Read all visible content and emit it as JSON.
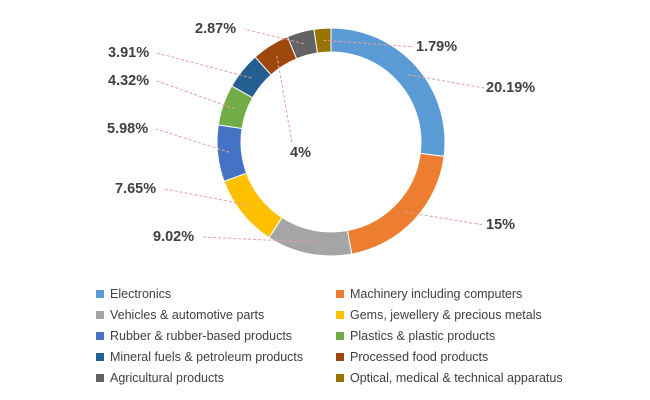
{
  "chart_data": {
    "type": "pie",
    "style": "donut",
    "title": "",
    "legend_position": "bottom",
    "slices": [
      {
        "name": "Electronics",
        "value": 20.19,
        "label": "20.19%",
        "color": "#5b9bd5"
      },
      {
        "name": "Machinery including computers",
        "value": 15,
        "label": "15%",
        "color": "#ed7d31"
      },
      {
        "name": "Vehicles & automotive parts",
        "value": 9.02,
        "label": "9.02%",
        "color": "#a5a5a5"
      },
      {
        "name": "Gems, jewellery & precious metals",
        "value": 7.65,
        "label": "7.65%",
        "color": "#ffc000"
      },
      {
        "name": "Rubber & rubber-based products",
        "value": 5.98,
        "label": "5.98%",
        "color": "#4472c4"
      },
      {
        "name": "Plastics & plastic products",
        "value": 4.32,
        "label": "4.32%",
        "color": "#70ad47"
      },
      {
        "name": "Mineral fuels & petroleum products",
        "value": 3.91,
        "label": "3.91%",
        "color": "#255e91"
      },
      {
        "name": "Processed food products",
        "value": 4,
        "label": "4%",
        "color": "#9e480e"
      },
      {
        "name": "Agricultural products",
        "value": 2.87,
        "label": "2.87%",
        "color": "#636363"
      },
      {
        "name": "Optical, medical & technical apparatus",
        "value": 1.79,
        "label": "1.79%",
        "color": "#997300"
      }
    ]
  }
}
